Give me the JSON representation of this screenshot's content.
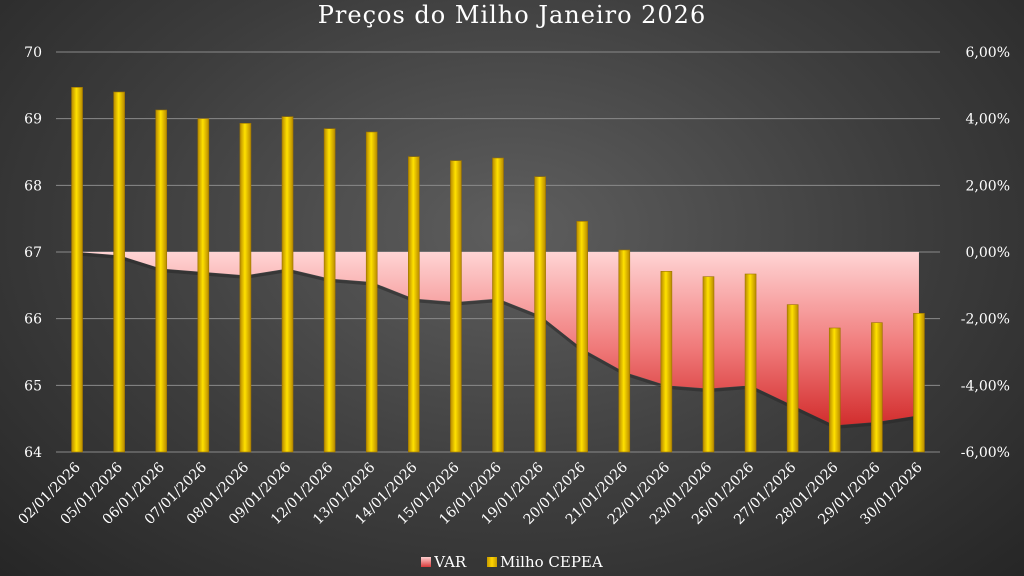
{
  "chart_data": {
    "type": "bar",
    "title": "Preços do Milho Janeiro 2026",
    "categories": [
      "02/01/2026",
      "05/01/2026",
      "06/01/2026",
      "07/01/2026",
      "08/01/2026",
      "09/01/2026",
      "12/01/2026",
      "13/01/2026",
      "14/01/2026",
      "15/01/2026",
      "16/01/2026",
      "19/01/2026",
      "20/01/2026",
      "21/01/2026",
      "22/01/2026",
      "23/01/2026",
      "26/01/2026",
      "27/01/2026",
      "28/01/2026",
      "29/01/2026",
      "30/01/2026"
    ],
    "series": [
      {
        "name": "VAR",
        "type": "area",
        "axis": "right",
        "color": "#e84848",
        "values": [
          0.0,
          -0.1,
          -0.5,
          -0.6,
          -0.7,
          -0.5,
          -0.8,
          -0.9,
          -1.4,
          -1.5,
          -1.4,
          -1.9,
          -2.9,
          -3.6,
          -4.0,
          -4.1,
          -4.0,
          -4.6,
          -5.2,
          -5.1,
          -4.9
        ]
      },
      {
        "name": "Milho CEPEA",
        "type": "bar",
        "axis": "left",
        "color": "#ffd000",
        "values": [
          69.47,
          69.4,
          69.13,
          69.0,
          68.93,
          69.03,
          68.85,
          68.8,
          68.43,
          68.37,
          68.41,
          68.13,
          67.46,
          67.03,
          66.71,
          66.63,
          66.67,
          66.21,
          65.86,
          65.94,
          66.08
        ]
      }
    ],
    "ylim_left": [
      64,
      70
    ],
    "yticks_left": [
      "64",
      "65",
      "66",
      "67",
      "68",
      "69",
      "70"
    ],
    "ylim_right": [
      -6,
      6
    ],
    "yticks_right": [
      "-6,00%",
      "-4,00%",
      "-2,00%",
      "0,00%",
      "2,00%",
      "4,00%",
      "6,00%"
    ],
    "grid": true,
    "legend_position": "bottom",
    "colors": {
      "grid": "#8a8a8a",
      "text": "#ffffff"
    }
  }
}
